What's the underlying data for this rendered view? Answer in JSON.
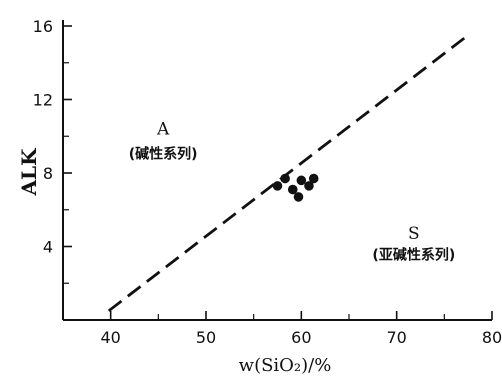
{
  "chart_data": {
    "type": "scatter",
    "title": "",
    "xlabel": "w(SiO₂)/%",
    "ylabel": "ALK",
    "xlim": [
      35,
      80
    ],
    "ylim": [
      0,
      16
    ],
    "xticks": [
      40,
      50,
      60,
      70,
      80
    ],
    "yticks": [
      4,
      8,
      12,
      16
    ],
    "grid": false,
    "series": [
      {
        "values": [
          {
            "x": 57.5,
            "y": 7.3
          },
          {
            "x": 58.3,
            "y": 7.7
          },
          {
            "x": 59.1,
            "y": 7.1
          },
          {
            "x": 59.7,
            "y": 6.7
          },
          {
            "x": 60.0,
            "y": 7.6
          },
          {
            "x": 60.8,
            "y": 7.3
          },
          {
            "x": 61.3,
            "y": 7.7
          }
        ]
      }
    ],
    "divider_line": {
      "style": "dashed",
      "start": {
        "x": 39.8,
        "y": 0.5
      },
      "end": {
        "x": 77.5,
        "y": 15.5
      }
    },
    "annotations": [
      {
        "text": "A",
        "x": 45.5,
        "y": 10.1
      },
      {
        "text": "(碱性系列)",
        "x": 45.5,
        "y": 8.8
      },
      {
        "text": "S",
        "x": 71.8,
        "y": 4.4
      },
      {
        "text": "(亚碱性系列)",
        "x": 71.8,
        "y": 3.3
      }
    ]
  }
}
